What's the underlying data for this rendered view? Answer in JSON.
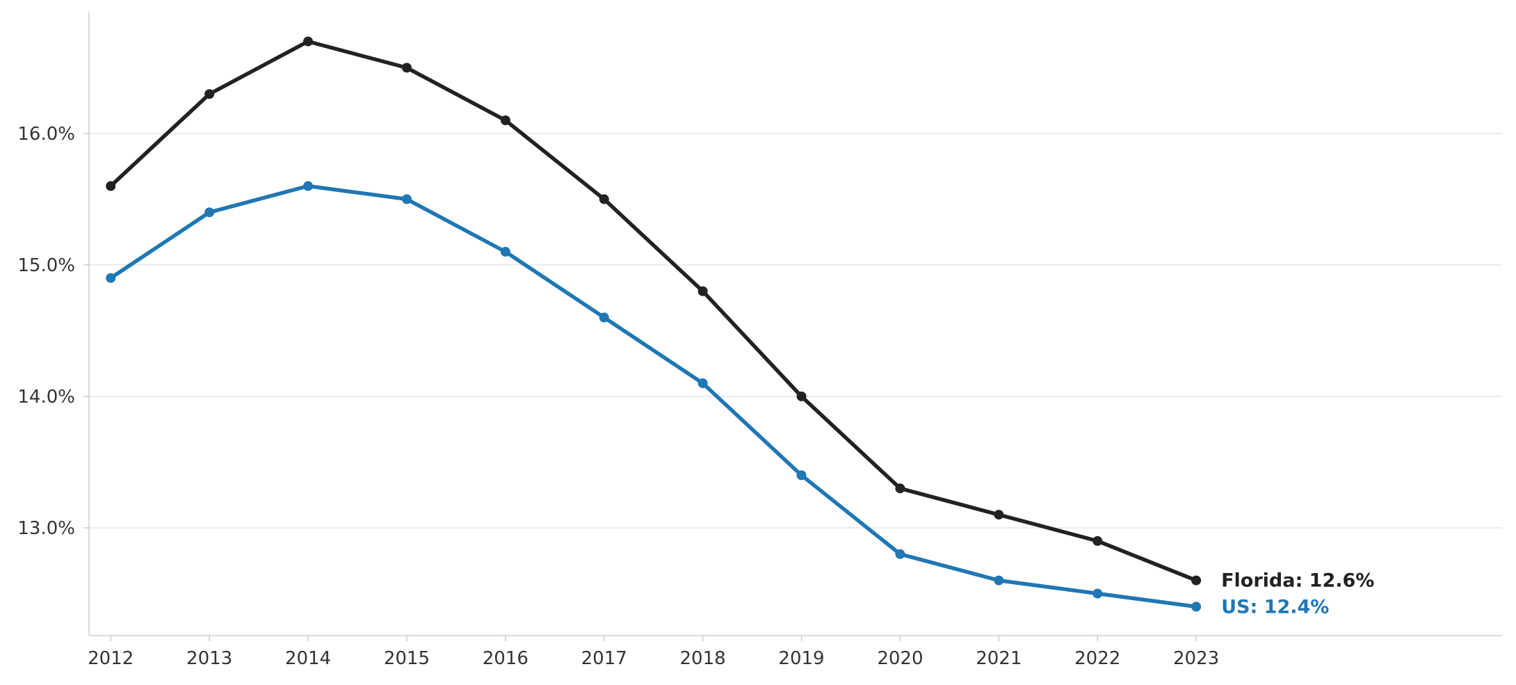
{
  "chart_data": {
    "type": "line",
    "x": [
      2012,
      2013,
      2014,
      2015,
      2016,
      2017,
      2018,
      2019,
      2020,
      2021,
      2022,
      2023
    ],
    "x_tick_labels": [
      "2012",
      "2013",
      "2014",
      "2015",
      "2016",
      "2017",
      "2018",
      "2019",
      "2020",
      "2021",
      "2022",
      "2023"
    ],
    "y_ticks": [
      13.0,
      14.0,
      15.0,
      16.0
    ],
    "y_tick_labels": [
      "13.0%",
      "14.0%",
      "15.0%",
      "16.0%"
    ],
    "xlim": [
      2011.78,
      2026.1
    ],
    "ylim": [
      12.18,
      16.92
    ],
    "grid": "horizontal",
    "legend": "none",
    "series": [
      {
        "name": "Florida",
        "color": "#222222",
        "values": [
          15.6,
          16.3,
          16.7,
          16.5,
          16.1,
          15.5,
          14.8,
          14.0,
          13.3,
          13.1,
          12.9,
          12.6
        ],
        "end_label": "Florida: 12.6%"
      },
      {
        "name": "US",
        "color": "#1f77b4",
        "values": [
          14.9,
          15.4,
          15.6,
          15.5,
          15.1,
          14.6,
          14.1,
          13.4,
          12.8,
          12.6,
          12.5,
          12.4
        ],
        "end_label": "US: 12.4%"
      }
    ],
    "title": "",
    "xlabel": "",
    "ylabel": ""
  }
}
